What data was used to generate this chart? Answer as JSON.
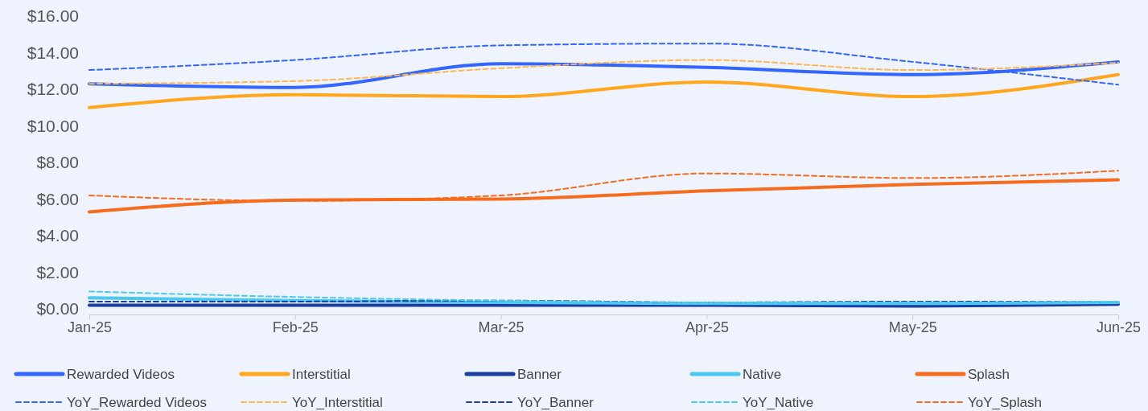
{
  "chart_data": {
    "type": "line",
    "categories": [
      "Jan-25",
      "Feb-25",
      "Mar-25",
      "Apr-25",
      "May-25",
      "Jun-25"
    ],
    "ylim": [
      0,
      16
    ],
    "yticks": [
      {
        "value": 0,
        "label": "$0.00"
      },
      {
        "value": 2,
        "label": "$2.00"
      },
      {
        "value": 4,
        "label": "$4.00"
      },
      {
        "value": 6,
        "label": "$6.00"
      },
      {
        "value": 8,
        "label": "$8.00"
      },
      {
        "value": 10,
        "label": "$10.00"
      },
      {
        "value": 12,
        "label": "$12.00"
      },
      {
        "value": 14,
        "label": "$14.00"
      },
      {
        "value": 16,
        "label": "$16.00"
      }
    ],
    "grid": false,
    "legend": "bottom",
    "marker": "none",
    "series": [
      {
        "name": "Rewarded Videos",
        "color": "#3366ff",
        "line_style": "solid",
        "values": [
          12.3,
          12.1,
          13.4,
          13.2,
          12.8,
          13.5
        ]
      },
      {
        "name": "Interstitial",
        "color": "#ffa61a",
        "line_style": "solid",
        "values": [
          11.0,
          11.7,
          11.6,
          12.4,
          11.6,
          12.8
        ]
      },
      {
        "name": "Banner",
        "color": "#1a3d9e",
        "line_style": "solid",
        "values": [
          0.2,
          0.2,
          0.2,
          0.2,
          0.15,
          0.25
        ]
      },
      {
        "name": "Native",
        "color": "#4cc9f0",
        "line_style": "solid",
        "values": [
          0.6,
          0.45,
          0.35,
          0.3,
          0.3,
          0.35
        ]
      },
      {
        "name": "Splash",
        "color": "#f76b1c",
        "line_style": "solid",
        "values": [
          5.3,
          5.95,
          6.0,
          6.45,
          6.8,
          7.05
        ]
      },
      {
        "name": "YoY_Rewarded Videos",
        "color": "#3366ff",
        "line_style": "dashed",
        "values": [
          13.05,
          13.6,
          14.4,
          14.5,
          13.5,
          12.25
        ]
      },
      {
        "name": "YoY_Interstitial",
        "color": "#ffb84d",
        "line_style": "dashed",
        "values": [
          12.3,
          12.45,
          13.15,
          13.6,
          13.05,
          13.45
        ]
      },
      {
        "name": "YoY_Banner",
        "color": "#1a3d9e",
        "line_style": "dashed",
        "values": [
          0.4,
          0.4,
          0.45,
          0.35,
          0.4,
          0.35
        ]
      },
      {
        "name": "YoY_Native",
        "color": "#4cc9f0",
        "line_style": "dashed",
        "values": [
          0.95,
          0.65,
          0.45,
          0.35,
          0.35,
          0.35
        ]
      },
      {
        "name": "YoY_Splash",
        "color": "#f76b1c",
        "line_style": "dashed",
        "values": [
          6.2,
          5.9,
          6.2,
          7.4,
          7.15,
          7.55
        ]
      }
    ]
  }
}
